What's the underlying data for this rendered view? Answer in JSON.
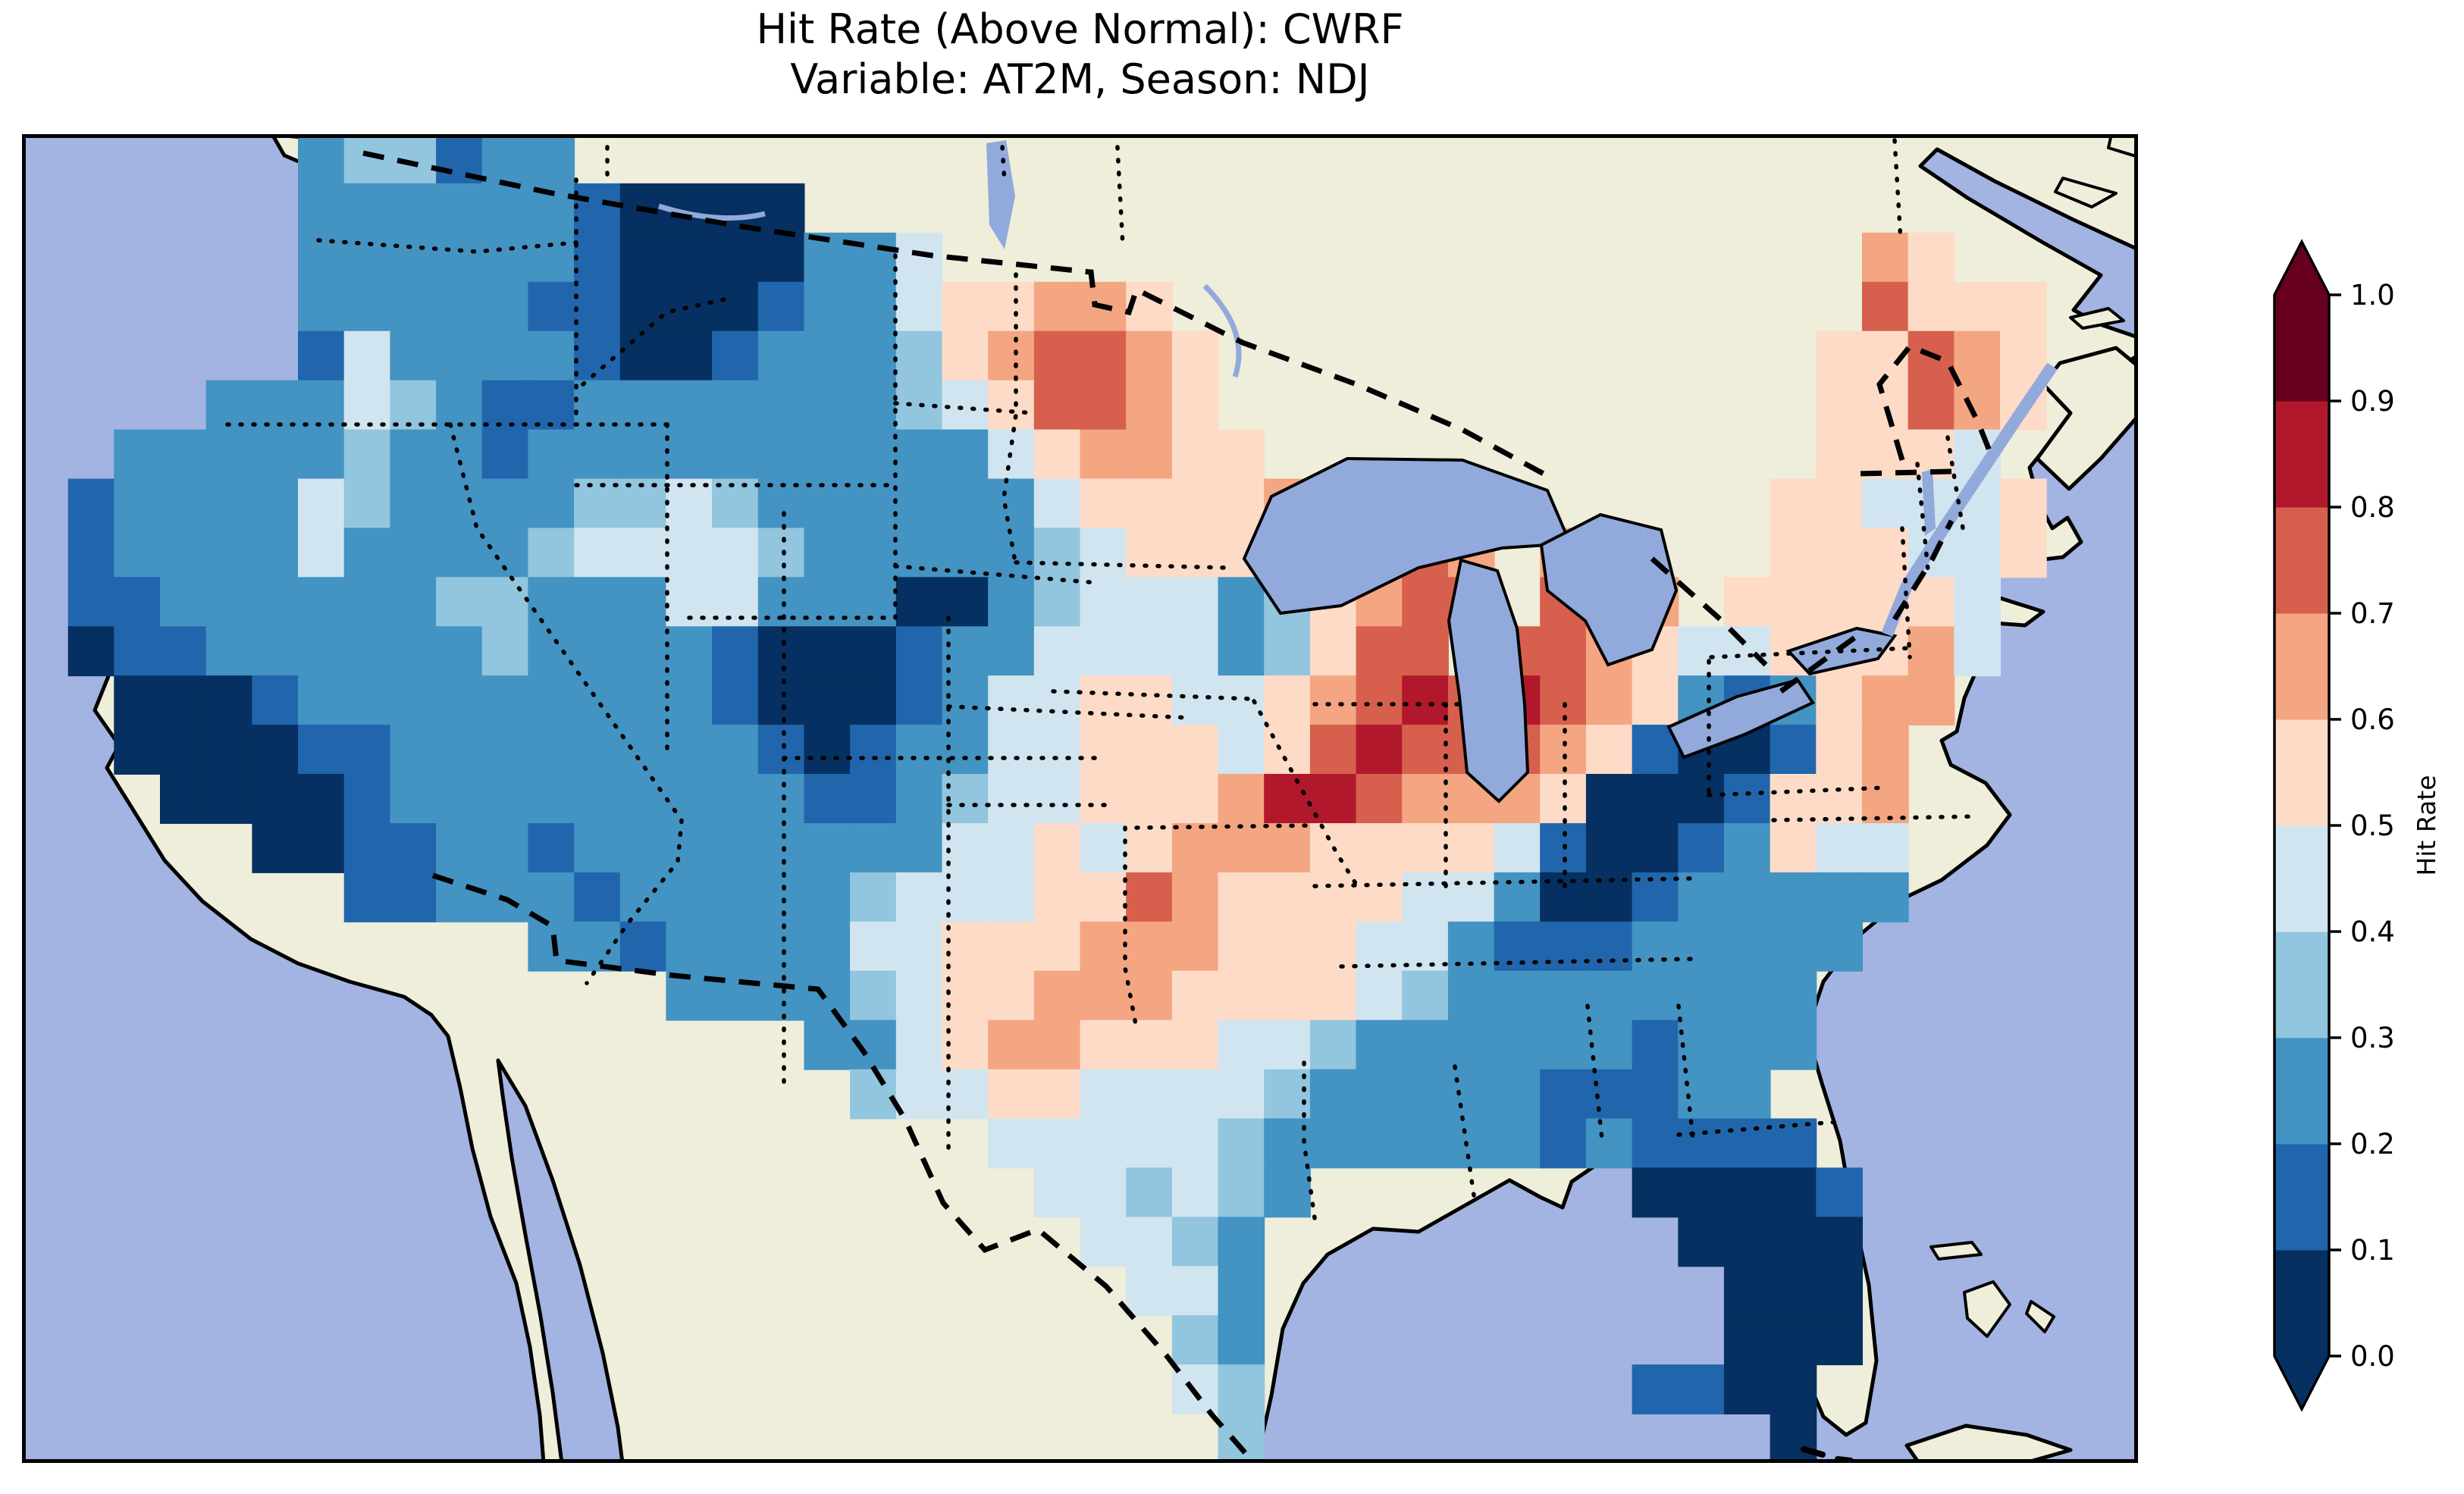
{
  "title": {
    "line1": "Hit Rate (Above Normal): CWRF",
    "line2": "Variable: AT2M, Season: NDJ"
  },
  "colorbar": {
    "label": "Hit Rate",
    "tick_labels": [
      "0.0",
      "0.1",
      "0.2",
      "0.3",
      "0.4",
      "0.5",
      "0.6",
      "0.7",
      "0.8",
      "0.9",
      "1.0"
    ],
    "extend": "both"
  },
  "colors": {
    "ocean": "#a3b4e2",
    "land": "#eeeeda",
    "lake": "#92a9dc",
    "coastline": "#000000",
    "border": "#000000",
    "bins": [
      "#053061",
      "#2166ac",
      "#4393c3",
      "#92c5de",
      "#d1e5f0",
      "#fddbc7",
      "#f4a582",
      "#d6604d",
      "#b2182b",
      "#67001f"
    ]
  },
  "chart_data": {
    "type": "heatmap",
    "title": "Hit Rate (Above Normal): CWRF",
    "subtitle": "Variable: AT2M, Season: NDJ",
    "variable": "AT2M",
    "season": "NDJ",
    "model": "CWRF",
    "colorbar": {
      "label": "Hit Rate",
      "ticks": [
        0.0,
        0.1,
        0.2,
        0.3,
        0.4,
        0.5,
        0.6,
        0.7,
        0.8,
        0.9,
        1.0
      ],
      "bin_edges": [
        0.0,
        0.1,
        0.2,
        0.3,
        0.4,
        0.5,
        0.6,
        0.7,
        0.8,
        0.9,
        1.0
      ],
      "bin_colors": [
        "#053061",
        "#2166ac",
        "#4393c3",
        "#92c5de",
        "#d1e5f0",
        "#fddbc7",
        "#f4a582",
        "#d6604d",
        "#b2182b",
        "#67001f"
      ],
      "extend": "both",
      "under_color": "#053061",
      "over_color": "#67001f",
      "legend_position": "right"
    },
    "map": {
      "region": "Contiguous United States (with surrounding Canada, Mexico, Atlantic, Gulf of Mexico)",
      "grid_note": "Hit-rate field over CONUS, approximated on a 46x27 raster covering the full map frame. Each character: '.' = no data (ocean/Canada/Mexico/lakes); digit d = hit-rate bin [d/10,(d+1)/10), i.e. cell value is approximately (d+0.5)/10.",
      "cols": 46,
      "rows": 27,
      "rows_data": [
        "......233122..................................",
        "......22222210000.............................",
        "......22222210000224....................65....",
        "......2222211000122455665...............7555..",
        "......14222210012223567765.............55765..",
        "....2224321122222223457765.............55765..",
        "..2222232212222222222456655............5554...",
        ".1222243222233432222224555566676......554445..",
        ".1222242222344443222223455556776.66...555445..",
        ".1122222233222442220023444235677.776.555554...",
        ".011222222322221000122444423577.77654455564...",
        "..0001222222222100012445544567878765212566....",
        "..000011222222221012244555457877765100156.....",
        "...00001222222222112344555688766650001556.....",
        ".....001122122222222445456665555410012544.....",
        ".......1122212222234445576555544200122222.....",
        "...........22122224455566655544211122222......",
        "..............2222345566655554322222222.......",
        ".................2245665554432222221222.......",
        "..................34455444432222211122........",
        ".....................444443222222121111.......",
        "......................443432.......00001......",
        ".......................4432.........0000......",
        "........................442..........000......",
        ".........................32..........000......",
        ".........................43........1100.......",
        "..........................3...........0......."
      ],
      "pattern_summary": "Low hit rates (dark blue, 0.0-0.2) over the West (Montana/Idaho, California Central Valley and coast, Colorado Rockies), the central Appalachians (WV/VA/E-TN), Florida peninsula and the Southeast; high hit rates (orange/red, 0.6-0.9) over Minnesota/Wisconsin/Michigan, Illinois/Indiana (cores 0.8-0.9), central Oklahoma, Delmarva coast and northern New England; near 0.4-0.6 over the central plains and Texas."
    }
  }
}
